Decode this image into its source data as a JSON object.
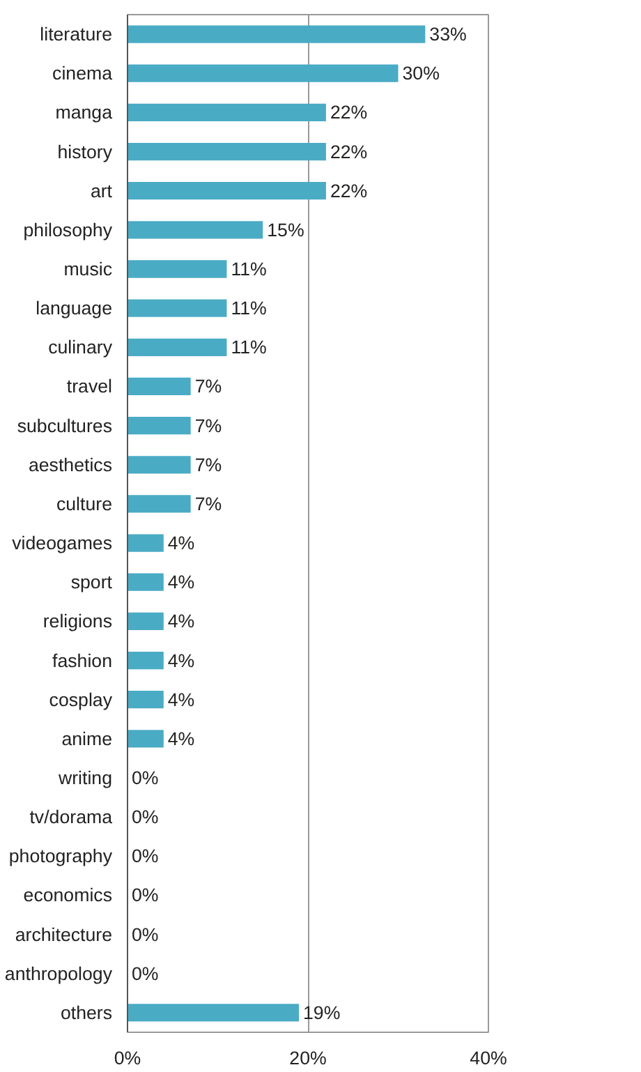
{
  "chart_data": {
    "type": "bar",
    "orientation": "horizontal",
    "categories": [
      "literature",
      "cinema",
      "manga",
      "history",
      "art",
      "philosophy",
      "music",
      "language",
      "culinary",
      "travel",
      "subcultures",
      "aesthetics",
      "culture",
      "videogames",
      "sport",
      "religions",
      "fashion",
      "cosplay",
      "anime",
      "writing",
      "tv/dorama",
      "photography",
      "economics",
      "architecture",
      "anthropology",
      "others"
    ],
    "values": [
      33,
      30,
      22,
      22,
      22,
      15,
      11,
      11,
      11,
      7,
      7,
      7,
      7,
      4,
      4,
      4,
      4,
      4,
      4,
      0,
      0,
      0,
      0,
      0,
      0,
      19
    ],
    "value_labels": [
      "33%",
      "30%",
      "22%",
      "22%",
      "22%",
      "15%",
      "11%",
      "11%",
      "11%",
      "7%",
      "7%",
      "7%",
      "7%",
      "4%",
      "4%",
      "4%",
      "4%",
      "4%",
      "4%",
      "0%",
      "0%",
      "0%",
      "0%",
      "0%",
      "0%",
      "19%"
    ],
    "color": "#4aabc5",
    "xlim": [
      0,
      40
    ],
    "xticks": [
      {
        "value": 0,
        "label": "0%"
      },
      {
        "value": 20,
        "label": "20%"
      },
      {
        "value": 40,
        "label": "40%"
      }
    ],
    "grid": "x"
  }
}
